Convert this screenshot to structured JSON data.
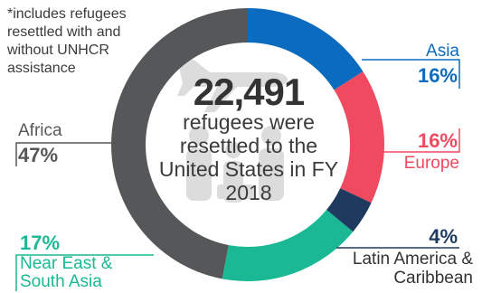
{
  "note": "*includes refugees resettled with and without UNHCR assistance",
  "center": {
    "total": "22,491",
    "caption": "refugees were resettled to the United States in FY 2018"
  },
  "colors": {
    "africa": "#555759",
    "asia": "#0b6bbf",
    "europe": "#ef4a60",
    "latin": "#1f3a5f",
    "near_east": "#1ab894",
    "icon": "#dcdcdc"
  },
  "icons": [
    "airplane-icon",
    "refugee-family-icon"
  ],
  "chart_data": {
    "type": "pie",
    "title": "22,491",
    "subtitle": "refugees were resettled to the United States in FY 2018",
    "categories": [
      "Asia",
      "Europe",
      "Latin America & Caribbean",
      "Near East & South Asia",
      "Africa"
    ],
    "values": [
      16,
      16,
      4,
      17,
      47
    ],
    "labels": [
      "16%",
      "16%",
      "4%",
      "17%",
      "47%"
    ],
    "legend": "none"
  }
}
